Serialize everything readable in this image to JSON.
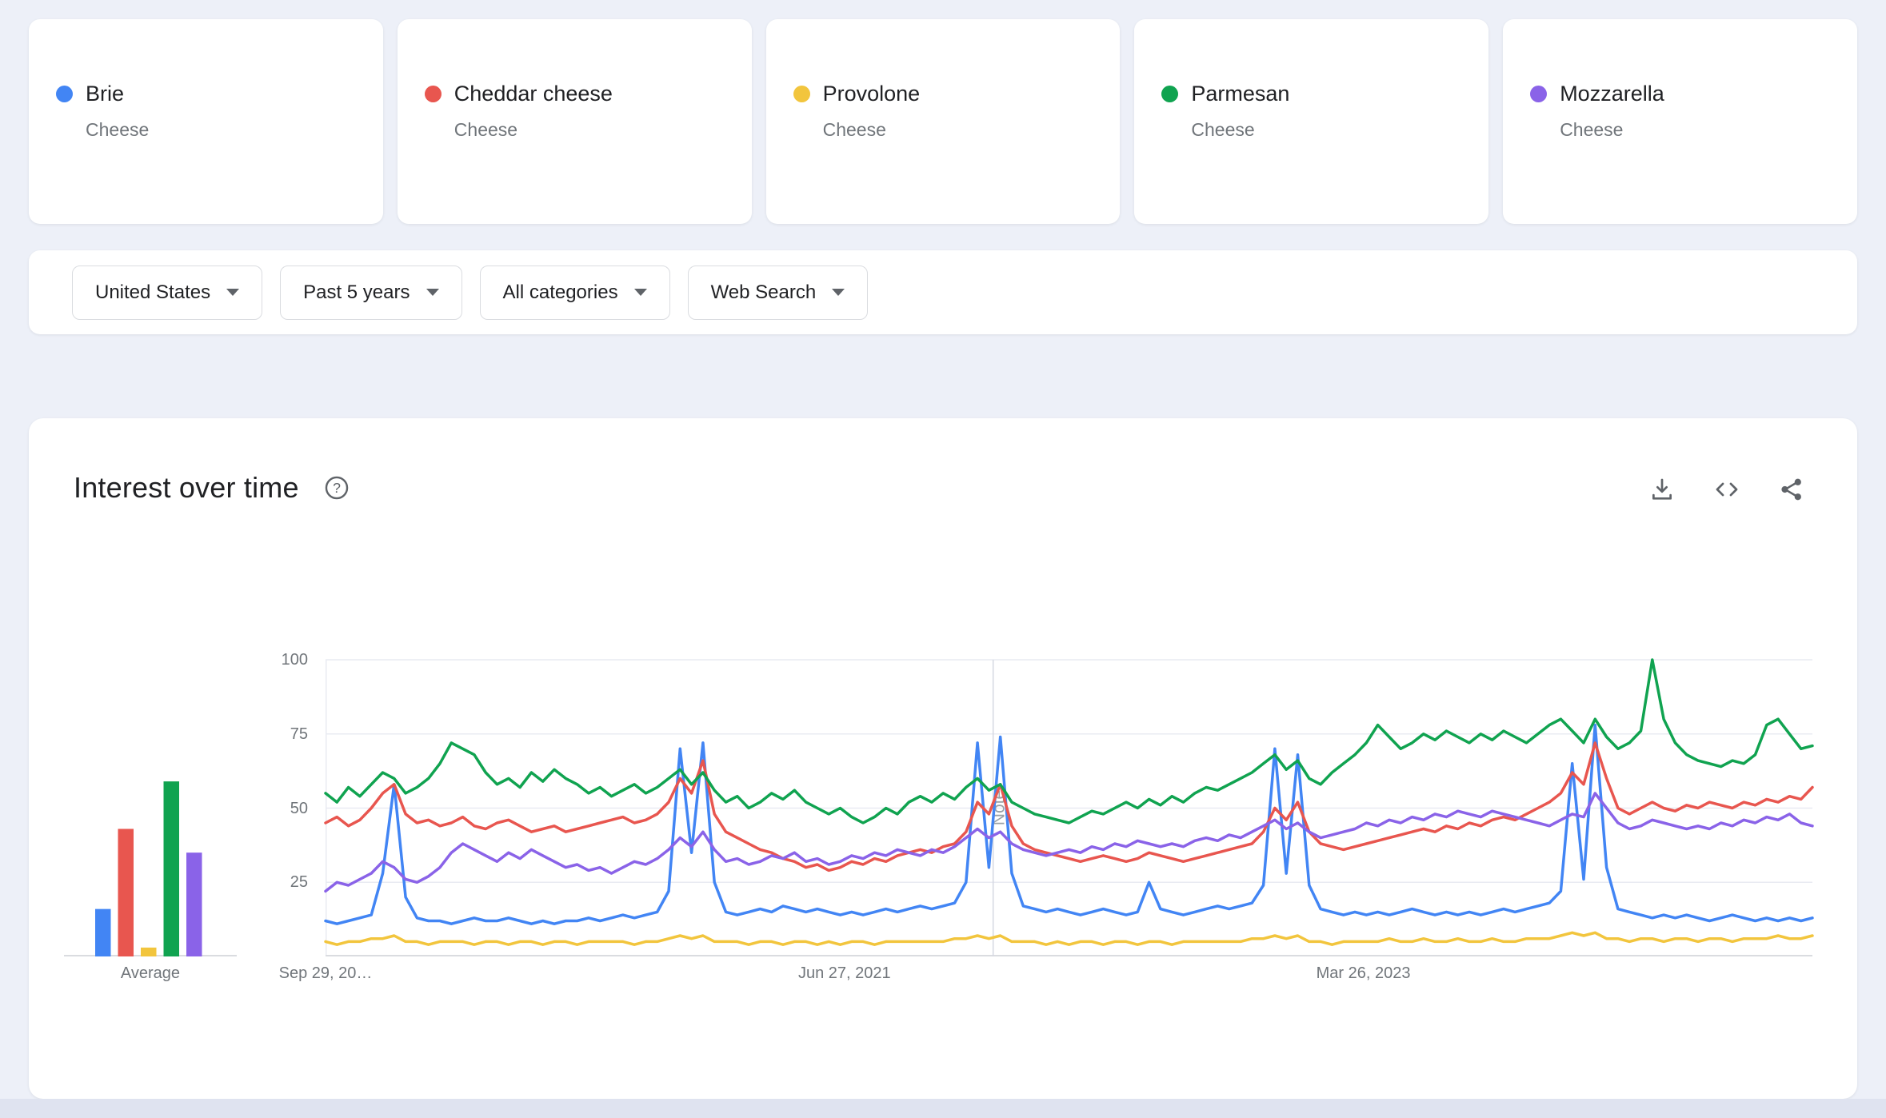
{
  "terms": [
    {
      "name": "Brie",
      "type": "Cheese",
      "color": "#4285f4"
    },
    {
      "name": "Cheddar cheese",
      "type": "Cheese",
      "color": "#e8564f"
    },
    {
      "name": "Provolone",
      "type": "Cheese",
      "color": "#f2c53d"
    },
    {
      "name": "Parmesan",
      "type": "Cheese",
      "color": "#10a350"
    },
    {
      "name": "Mozzarella",
      "type": "Cheese",
      "color": "#8a63e8"
    }
  ],
  "filters": [
    {
      "label": "United States"
    },
    {
      "label": "Past 5 years"
    },
    {
      "label": "All categories"
    },
    {
      "label": "Web Search"
    }
  ],
  "section": {
    "title": "Interest over time"
  },
  "icons": [
    "help-icon",
    "download-icon",
    "embed-icon",
    "share-icon",
    "chevron-down-icon"
  ],
  "average": {
    "label": "Average",
    "values": [
      16,
      43,
      3,
      59,
      35
    ]
  },
  "chart_data": {
    "type": "line",
    "title": "Interest over time",
    "ylim": [
      0,
      100
    ],
    "yticks": [
      25,
      50,
      75,
      100
    ],
    "grid": true,
    "legend_position": "none",
    "xticks": [
      {
        "label": "Sep 29, 20…",
        "f": 0
      },
      {
        "label": "Jun 27, 2021",
        "f": 0.349
      },
      {
        "label": "Mar 26, 2023",
        "f": 0.698
      }
    ],
    "note_marker": {
      "label": "Note",
      "x_fraction": 0.449
    },
    "series": [
      {
        "name": "Brie",
        "color": "#4285f4",
        "values": [
          12,
          11,
          12,
          13,
          14,
          28,
          58,
          20,
          13,
          12,
          12,
          11,
          12,
          13,
          12,
          12,
          13,
          12,
          11,
          12,
          11,
          12,
          12,
          13,
          12,
          13,
          14,
          13,
          14,
          15,
          22,
          70,
          35,
          72,
          25,
          15,
          14,
          15,
          16,
          15,
          17,
          16,
          15,
          16,
          15,
          14,
          15,
          14,
          15,
          16,
          15,
          16,
          17,
          16,
          17,
          18,
          25,
          72,
          30,
          74,
          28,
          17,
          16,
          15,
          16,
          15,
          14,
          15,
          16,
          15,
          14,
          15,
          25,
          16,
          15,
          14,
          15,
          16,
          17,
          16,
          17,
          18,
          24,
          70,
          28,
          68,
          24,
          16,
          15,
          14,
          15,
          14,
          15,
          14,
          15,
          16,
          15,
          14,
          15,
          14,
          15,
          14,
          15,
          16,
          15,
          16,
          17,
          18,
          22,
          65,
          26,
          78,
          30,
          16,
          15,
          14,
          13,
          14,
          13,
          14,
          13,
          12,
          13,
          14,
          13,
          12,
          13,
          12,
          13,
          12,
          13
        ]
      },
      {
        "name": "Cheddar cheese",
        "color": "#e8564f",
        "values": [
          45,
          47,
          44,
          46,
          50,
          55,
          58,
          48,
          45,
          46,
          44,
          45,
          47,
          44,
          43,
          45,
          46,
          44,
          42,
          43,
          44,
          42,
          43,
          44,
          45,
          46,
          47,
          45,
          46,
          48,
          52,
          60,
          55,
          66,
          48,
          42,
          40,
          38,
          36,
          35,
          33,
          32,
          30,
          31,
          29,
          30,
          32,
          31,
          33,
          32,
          34,
          35,
          36,
          35,
          37,
          38,
          42,
          52,
          48,
          58,
          44,
          38,
          36,
          35,
          34,
          33,
          32,
          33,
          34,
          33,
          32,
          33,
          35,
          34,
          33,
          32,
          33,
          34,
          35,
          36,
          37,
          38,
          42,
          50,
          46,
          52,
          42,
          38,
          37,
          36,
          37,
          38,
          39,
          40,
          41,
          42,
          43,
          42,
          44,
          43,
          45,
          44,
          46,
          47,
          46,
          48,
          50,
          52,
          55,
          62,
          58,
          72,
          60,
          50,
          48,
          50,
          52,
          50,
          49,
          51,
          50,
          52,
          51,
          50,
          52,
          51,
          53,
          52,
          54,
          53,
          57
        ]
      },
      {
        "name": "Provolone",
        "color": "#f2c53d",
        "values": [
          5,
          4,
          5,
          5,
          6,
          6,
          7,
          5,
          5,
          4,
          5,
          5,
          5,
          4,
          5,
          5,
          4,
          5,
          5,
          4,
          5,
          5,
          4,
          5,
          5,
          5,
          5,
          4,
          5,
          5,
          6,
          7,
          6,
          7,
          5,
          5,
          5,
          4,
          5,
          5,
          4,
          5,
          5,
          4,
          5,
          4,
          5,
          5,
          4,
          5,
          5,
          5,
          5,
          5,
          5,
          6,
          6,
          7,
          6,
          7,
          5,
          5,
          5,
          4,
          5,
          4,
          5,
          5,
          4,
          5,
          5,
          4,
          5,
          5,
          4,
          5,
          5,
          5,
          5,
          5,
          5,
          6,
          6,
          7,
          6,
          7,
          5,
          5,
          4,
          5,
          5,
          5,
          5,
          6,
          5,
          5,
          6,
          5,
          5,
          6,
          5,
          5,
          6,
          5,
          5,
          6,
          6,
          6,
          7,
          8,
          7,
          8,
          6,
          6,
          5,
          6,
          6,
          5,
          6,
          6,
          5,
          6,
          6,
          5,
          6,
          6,
          6,
          7,
          6,
          6,
          7
        ]
      },
      {
        "name": "Parmesan",
        "color": "#10a350",
        "values": [
          55,
          52,
          57,
          54,
          58,
          62,
          60,
          55,
          57,
          60,
          65,
          72,
          70,
          68,
          62,
          58,
          60,
          57,
          62,
          59,
          63,
          60,
          58,
          55,
          57,
          54,
          56,
          58,
          55,
          57,
          60,
          63,
          58,
          62,
          56,
          52,
          54,
          50,
          52,
          55,
          53,
          56,
          52,
          50,
          48,
          50,
          47,
          45,
          47,
          50,
          48,
          52,
          54,
          52,
          55,
          53,
          57,
          60,
          56,
          58,
          52,
          50,
          48,
          47,
          46,
          45,
          47,
          49,
          48,
          50,
          52,
          50,
          53,
          51,
          54,
          52,
          55,
          57,
          56,
          58,
          60,
          62,
          65,
          68,
          63,
          66,
          60,
          58,
          62,
          65,
          68,
          72,
          78,
          74,
          70,
          72,
          75,
          73,
          76,
          74,
          72,
          75,
          73,
          76,
          74,
          72,
          75,
          78,
          80,
          76,
          72,
          80,
          74,
          70,
          72,
          76,
          100,
          80,
          72,
          68,
          66,
          65,
          64,
          66,
          65,
          68,
          78,
          80,
          75,
          70,
          71
        ]
      },
      {
        "name": "Mozzarella",
        "color": "#8a63e8",
        "values": [
          22,
          25,
          24,
          26,
          28,
          32,
          30,
          26,
          25,
          27,
          30,
          35,
          38,
          36,
          34,
          32,
          35,
          33,
          36,
          34,
          32,
          30,
          31,
          29,
          30,
          28,
          30,
          32,
          31,
          33,
          36,
          40,
          37,
          42,
          36,
          32,
          33,
          31,
          32,
          34,
          33,
          35,
          32,
          33,
          31,
          32,
          34,
          33,
          35,
          34,
          36,
          35,
          34,
          36,
          35,
          37,
          40,
          43,
          40,
          42,
          38,
          36,
          35,
          34,
          35,
          36,
          35,
          37,
          36,
          38,
          37,
          39,
          38,
          37,
          38,
          37,
          39,
          40,
          39,
          41,
          40,
          42,
          44,
          46,
          43,
          45,
          42,
          40,
          41,
          42,
          43,
          45,
          44,
          46,
          45,
          47,
          46,
          48,
          47,
          49,
          48,
          47,
          49,
          48,
          47,
          46,
          45,
          44,
          46,
          48,
          47,
          55,
          50,
          45,
          43,
          44,
          46,
          45,
          44,
          43,
          44,
          43,
          45,
          44,
          46,
          45,
          47,
          46,
          48,
          45,
          44
        ]
      }
    ]
  }
}
